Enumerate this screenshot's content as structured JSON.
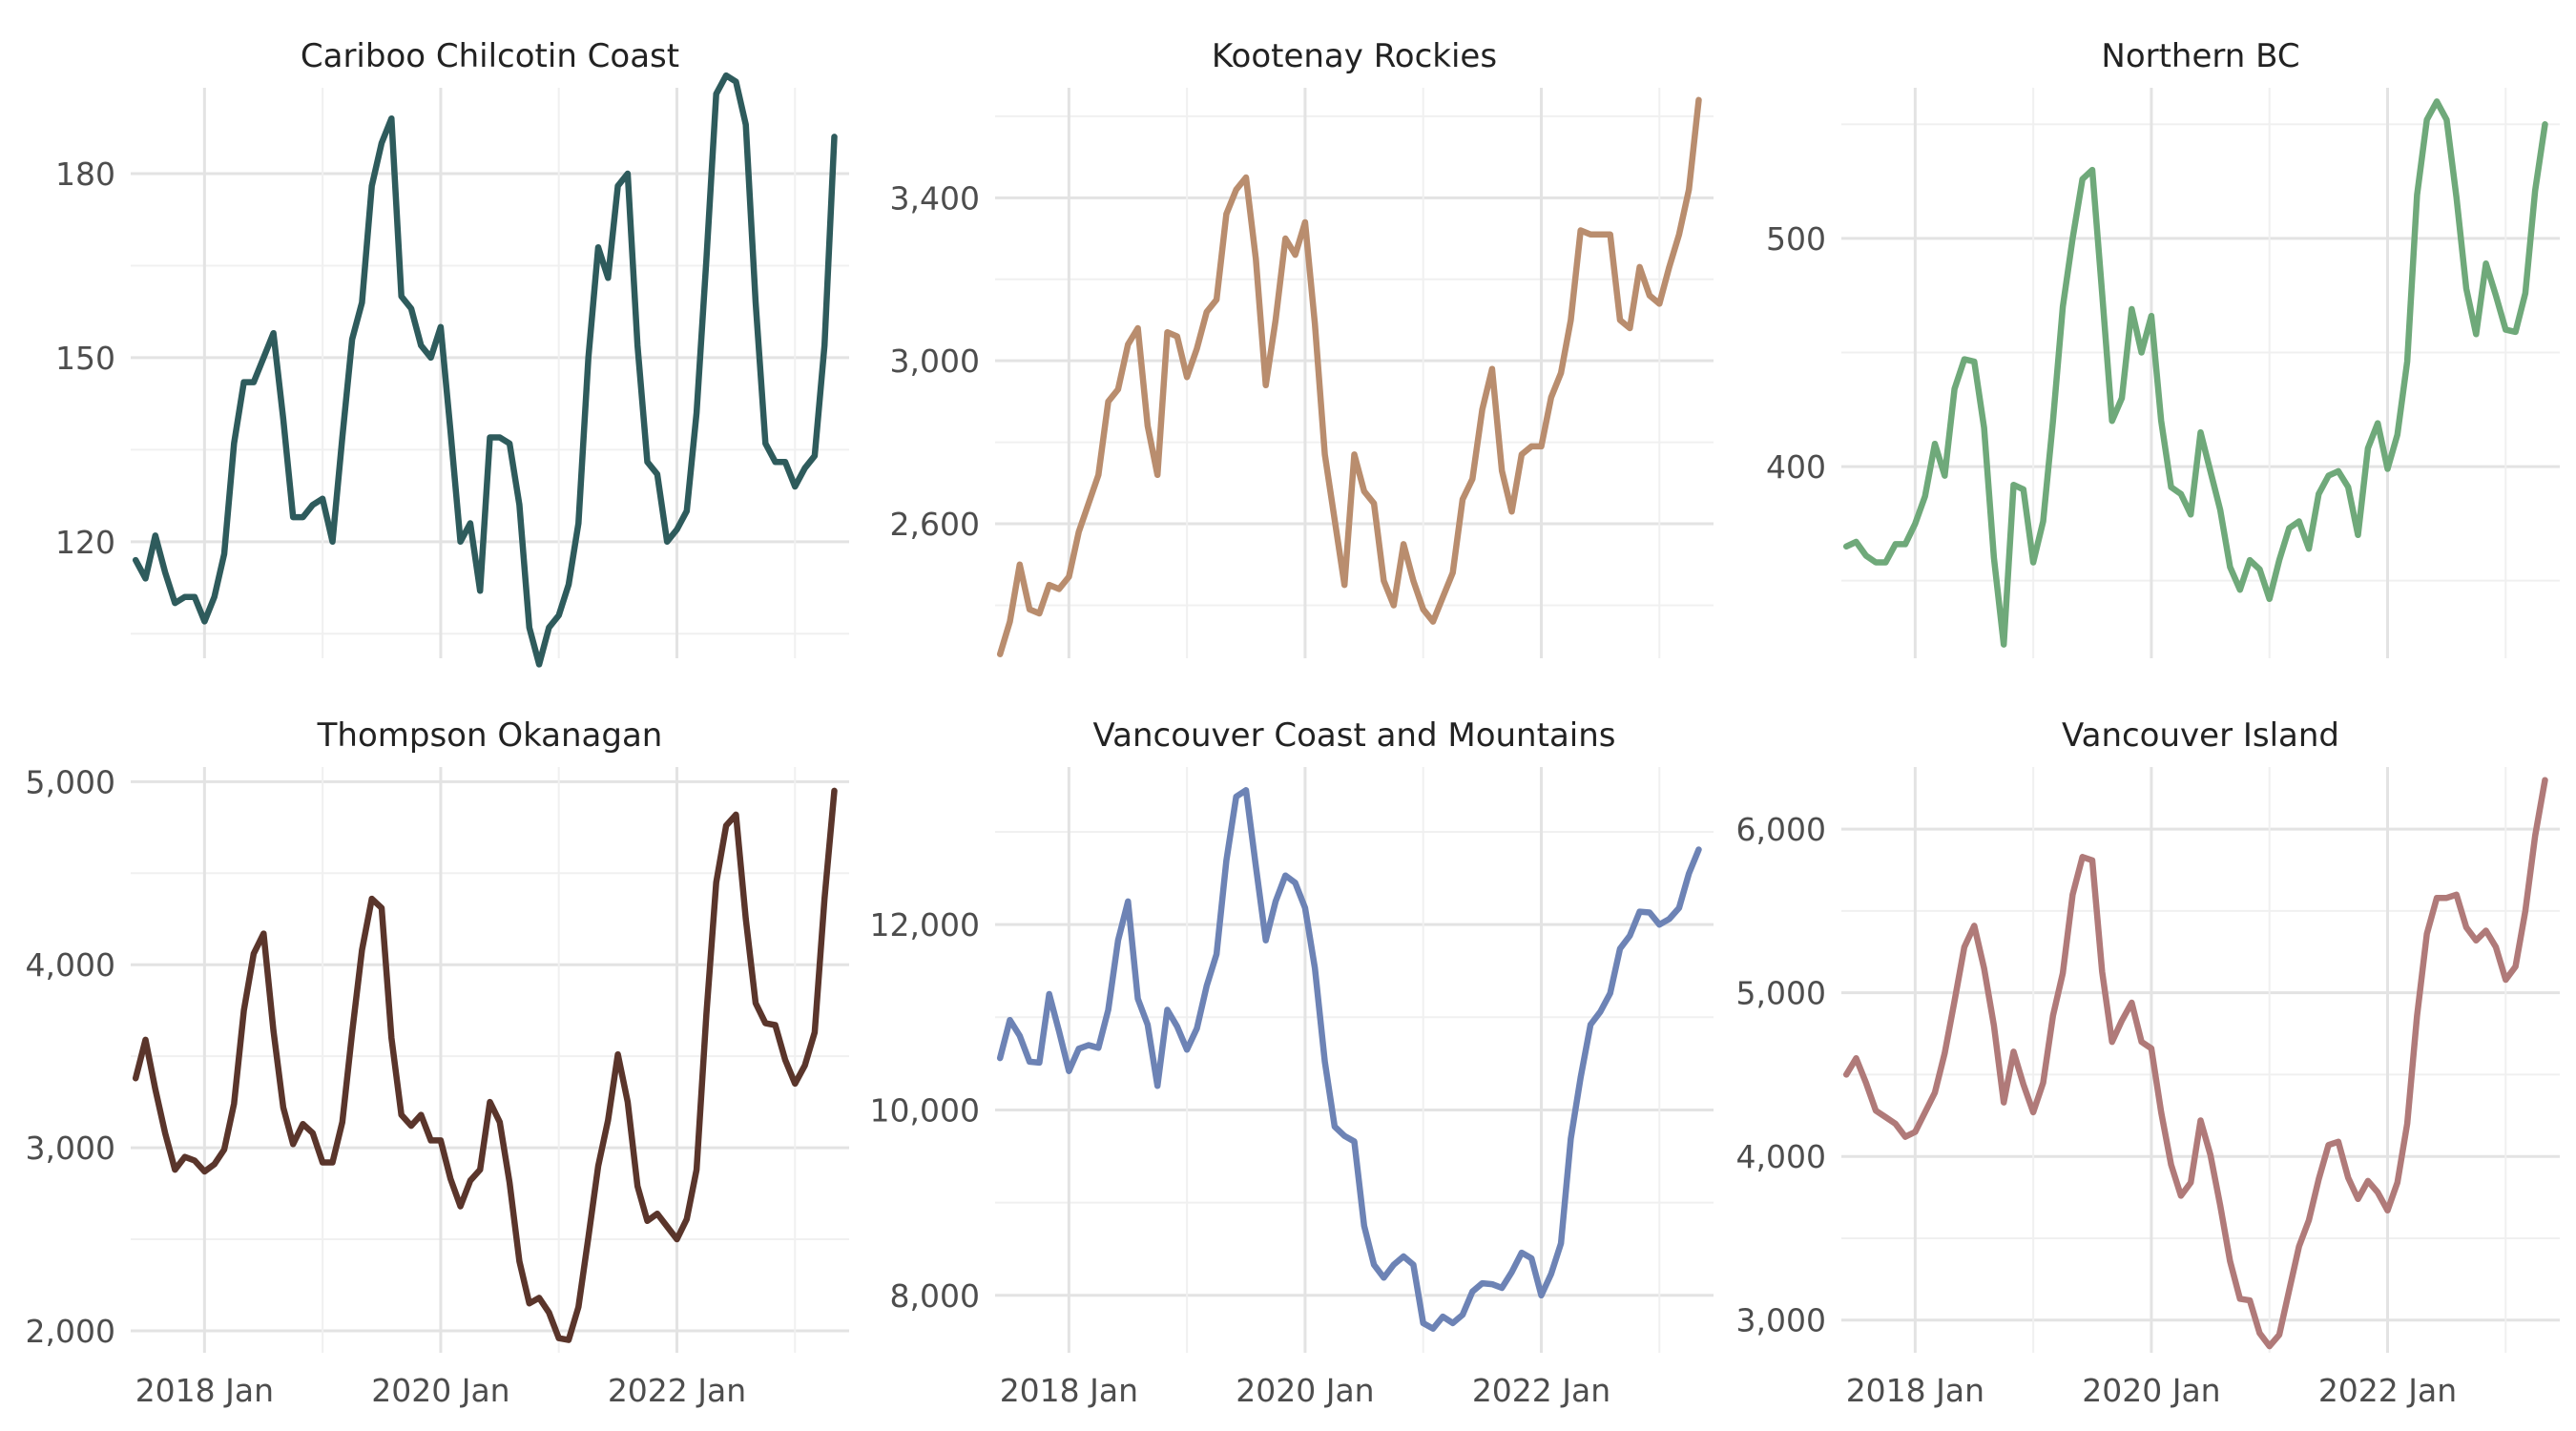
{
  "chart_data": {
    "type": "line",
    "x_start": "2017-06",
    "x_tick_labels": [
      "2018 Jan",
      "2020 Jan",
      "2022 Jan"
    ],
    "x_tick_dates": [
      "2018-01",
      "2020-01",
      "2022-01"
    ],
    "grid": true,
    "legend": "none",
    "panels": [
      {
        "title": "Cariboo Chilcotin Coast",
        "color": "#2e5b5c",
        "ylim": [
          101,
          194
        ],
        "yticks": [
          120,
          150,
          180
        ],
        "ytick_labels": [
          "120",
          "150",
          "180"
        ],
        "values": [
          117,
          114,
          121,
          115,
          110,
          111,
          111,
          107,
          111,
          118,
          136,
          146,
          146,
          150,
          154,
          140,
          124,
          124,
          126,
          127,
          120,
          137,
          153,
          159,
          178,
          185,
          189,
          160,
          158,
          152,
          150,
          155,
          138,
          120,
          123,
          112,
          137,
          137,
          136,
          126,
          106,
          100,
          106,
          108,
          113,
          123,
          150,
          168,
          163,
          178,
          180,
          152,
          133,
          131,
          120,
          122,
          125,
          141,
          166,
          193,
          196,
          195,
          188,
          159,
          136,
          133,
          133,
          129,
          132,
          134,
          152,
          186
        ]
      },
      {
        "title": "Kootenay Rockies",
        "color": "#b98d6e",
        "ylim": [
          2270,
          3670
        ],
        "yticks": [
          2600,
          3000,
          3400
        ],
        "ytick_labels": [
          "2,600",
          "3,000",
          "3,400"
        ],
        "values": [
          2280,
          2360,
          2500,
          2390,
          2380,
          2450,
          2440,
          2470,
          2580,
          2650,
          2720,
          2900,
          2930,
          3040,
          3080,
          2840,
          2720,
          3070,
          3060,
          2960,
          3030,
          3120,
          3150,
          3360,
          3420,
          3450,
          3250,
          2940,
          3100,
          3300,
          3260,
          3340,
          3090,
          2770,
          2610,
          2450,
          2770,
          2680,
          2650,
          2460,
          2400,
          2550,
          2460,
          2390,
          2360,
          2420,
          2480,
          2660,
          2710,
          2880,
          2980,
          2730,
          2630,
          2770,
          2790,
          2790,
          2910,
          2970,
          3100,
          3320,
          3310,
          3310,
          3310,
          3100,
          3080,
          3230,
          3160,
          3140,
          3230,
          3310,
          3420,
          3640
        ]
      },
      {
        "title": "Northern BC",
        "color": "#6fa97a",
        "ylim": [
          316,
          566
        ],
        "yticks": [
          400,
          500
        ],
        "ytick_labels": [
          "400",
          "500"
        ],
        "values": [
          365,
          367,
          361,
          358,
          358,
          366,
          366,
          375,
          387,
          410,
          396,
          434,
          447,
          446,
          417,
          360,
          322,
          392,
          390,
          358,
          376,
          420,
          470,
          500,
          526,
          530,
          476,
          420,
          430,
          469,
          450,
          466,
          420,
          391,
          388,
          379,
          415,
          398,
          381,
          356,
          346,
          359,
          355,
          342,
          359,
          373,
          376,
          364,
          388,
          396,
          398,
          391,
          370,
          408,
          419,
          399,
          414,
          446,
          519,
          552,
          560,
          552,
          518,
          478,
          458,
          489,
          475,
          460,
          459,
          476,
          521,
          550
        ]
      },
      {
        "title": "Thompson Okanagan",
        "color": "#5a352b",
        "ylim": [
          1880,
          5080
        ],
        "yticks": [
          2000,
          3000,
          4000,
          5000
        ],
        "ytick_labels": [
          "2,000",
          "3,000",
          "4,000",
          "5,000"
        ],
        "values": [
          3380,
          3590,
          3320,
          3080,
          2880,
          2950,
          2930,
          2870,
          2910,
          2990,
          3240,
          3750,
          4060,
          4170,
          3640,
          3220,
          3020,
          3130,
          3080,
          2920,
          2920,
          3140,
          3630,
          4080,
          4360,
          4310,
          3600,
          3180,
          3120,
          3180,
          3040,
          3040,
          2830,
          2680,
          2820,
          2880,
          3250,
          3140,
          2810,
          2380,
          2150,
          2180,
          2100,
          1960,
          1950,
          2130,
          2510,
          2900,
          3150,
          3510,
          3250,
          2790,
          2600,
          2640,
          2570,
          2500,
          2610,
          2880,
          3730,
          4450,
          4760,
          4820,
          4250,
          3790,
          3680,
          3670,
          3480,
          3350,
          3450,
          3630,
          4360,
          4950
        ]
      },
      {
        "title": "Vancouver Coast and Mountains",
        "color": "#6d83b5",
        "ylim": [
          7380,
          13700
        ],
        "yticks": [
          8000,
          10000,
          12000
        ],
        "ytick_labels": [
          "8,000",
          "10,000",
          "12,000"
        ],
        "values": [
          10560,
          10970,
          10800,
          10520,
          10510,
          11250,
          10850,
          10420,
          10660,
          10700,
          10670,
          11080,
          11830,
          12250,
          11200,
          10920,
          10260,
          11080,
          10900,
          10650,
          10880,
          11340,
          11680,
          12690,
          13380,
          13450,
          12630,
          11830,
          12250,
          12530,
          12450,
          12180,
          11530,
          10520,
          9820,
          9720,
          9660,
          8750,
          8330,
          8190,
          8330,
          8420,
          8330,
          7700,
          7640,
          7770,
          7700,
          7790,
          8040,
          8130,
          8120,
          8080,
          8250,
          8460,
          8400,
          8000,
          8230,
          8560,
          9690,
          10350,
          10920,
          11060,
          11260,
          11740,
          11880,
          12140,
          12130,
          12000,
          12060,
          12180,
          12550,
          12810
        ]
      },
      {
        "title": "Vancouver Island",
        "color": "#b07a79",
        "ylim": [
          2800,
          6380
        ],
        "yticks": [
          3000,
          4000,
          5000,
          6000
        ],
        "ytick_labels": [
          "3,000",
          "4,000",
          "5,000",
          "6,000"
        ],
        "values": [
          4500,
          4600,
          4450,
          4280,
          4240,
          4200,
          4120,
          4150,
          4270,
          4390,
          4630,
          4950,
          5280,
          5410,
          5150,
          4800,
          4330,
          4640,
          4440,
          4270,
          4450,
          4860,
          5120,
          5600,
          5830,
          5810,
          5130,
          4700,
          4830,
          4940,
          4700,
          4660,
          4270,
          3950,
          3760,
          3840,
          4220,
          4010,
          3700,
          3360,
          3130,
          3120,
          2920,
          2840,
          2910,
          3180,
          3450,
          3610,
          3860,
          4070,
          4090,
          3870,
          3740,
          3850,
          3780,
          3670,
          3840,
          4200,
          4860,
          5360,
          5580,
          5580,
          5600,
          5400,
          5320,
          5380,
          5280,
          5080,
          5160,
          5500,
          5960,
          6300
        ]
      }
    ]
  }
}
